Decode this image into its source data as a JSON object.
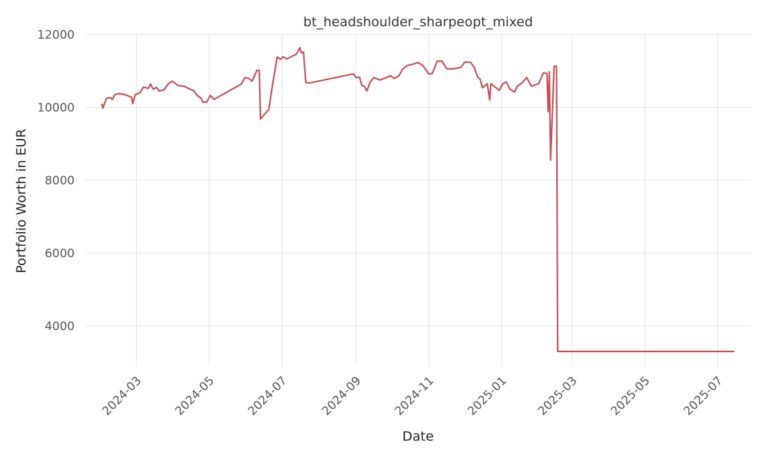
{
  "chart_data": {
    "type": "line",
    "title": "bt_headshoulder_sharpeopt_mixed",
    "xlabel": "Date",
    "ylabel": "Portfolio Worth in EUR",
    "x_tick_labels": [
      "2024-03",
      "2024-05",
      "2024-07",
      "2024-09",
      "2024-11",
      "2025-01",
      "2025-03",
      "2025-05",
      "2025-07"
    ],
    "y_ticks": [
      4000,
      6000,
      8000,
      10000,
      12000
    ],
    "xlim": [
      "2024-01-18",
      "2025-07-29"
    ],
    "ylim": [
      2900,
      12000
    ],
    "grid": true,
    "series_color": "#c44e52",
    "series": [
      {
        "name": "",
        "points": [
          [
            "2024-02-01",
            10100
          ],
          [
            "2024-02-02",
            9980
          ],
          [
            "2024-02-05",
            10250
          ],
          [
            "2024-02-08",
            10270
          ],
          [
            "2024-02-10",
            10220
          ],
          [
            "2024-02-12",
            10350
          ],
          [
            "2024-02-15",
            10380
          ],
          [
            "2024-02-19",
            10360
          ],
          [
            "2024-02-22",
            10330
          ],
          [
            "2024-02-26",
            10280
          ],
          [
            "2024-02-27",
            10100
          ],
          [
            "2024-02-29",
            10350
          ],
          [
            "2024-03-04",
            10400
          ],
          [
            "2024-03-07",
            10560
          ],
          [
            "2024-03-11",
            10520
          ],
          [
            "2024-03-13",
            10640
          ],
          [
            "2024-03-15",
            10500
          ],
          [
            "2024-03-18",
            10550
          ],
          [
            "2024-03-20",
            10450
          ],
          [
            "2024-03-24",
            10480
          ],
          [
            "2024-03-28",
            10650
          ],
          [
            "2024-03-31",
            10720
          ],
          [
            "2024-04-05",
            10600
          ],
          [
            "2024-04-10",
            10580
          ],
          [
            "2024-04-15",
            10500
          ],
          [
            "2024-04-18",
            10460
          ],
          [
            "2024-04-21",
            10330
          ],
          [
            "2024-04-24",
            10260
          ],
          [
            "2024-04-26",
            10140
          ],
          [
            "2024-04-29",
            10150
          ],
          [
            "2024-05-02",
            10330
          ],
          [
            "2024-05-05",
            10220
          ],
          [
            "2024-05-28",
            10640
          ],
          [
            "2024-05-31",
            10820
          ],
          [
            "2024-06-03",
            10800
          ],
          [
            "2024-06-06",
            10720
          ],
          [
            "2024-06-10",
            11020
          ],
          [
            "2024-06-12",
            11010
          ],
          [
            "2024-06-13",
            9680
          ],
          [
            "2024-06-20",
            9950
          ],
          [
            "2024-06-23",
            10600
          ],
          [
            "2024-06-27",
            11380
          ],
          [
            "2024-06-30",
            11320
          ],
          [
            "2024-07-02",
            11390
          ],
          [
            "2024-07-05",
            11330
          ],
          [
            "2024-07-13",
            11460
          ],
          [
            "2024-07-16",
            11640
          ],
          [
            "2024-07-17",
            11500
          ],
          [
            "2024-07-19",
            11520
          ],
          [
            "2024-07-21",
            10680
          ],
          [
            "2024-07-24",
            10670
          ],
          [
            "2024-08-30",
            10920
          ],
          [
            "2024-09-01",
            10820
          ],
          [
            "2024-09-04",
            10830
          ],
          [
            "2024-09-06",
            10600
          ],
          [
            "2024-09-08",
            10580
          ],
          [
            "2024-09-10",
            10450
          ],
          [
            "2024-09-13",
            10700
          ],
          [
            "2024-09-16",
            10820
          ],
          [
            "2024-09-21",
            10750
          ],
          [
            "2024-09-25",
            10800
          ],
          [
            "2024-09-30",
            10870
          ],
          [
            "2024-10-03",
            10790
          ],
          [
            "2024-10-07",
            10870
          ],
          [
            "2024-10-10",
            11050
          ],
          [
            "2024-10-14",
            11150
          ],
          [
            "2024-10-18",
            11180
          ],
          [
            "2024-10-23",
            11230
          ],
          [
            "2024-10-27",
            11150
          ],
          [
            "2024-11-01",
            10920
          ],
          [
            "2024-11-04",
            10930
          ],
          [
            "2024-11-08",
            11270
          ],
          [
            "2024-11-12",
            11270
          ],
          [
            "2024-11-16",
            11060
          ],
          [
            "2024-11-22",
            11060
          ],
          [
            "2024-11-28",
            11100
          ],
          [
            "2024-12-01",
            11240
          ],
          [
            "2024-12-06",
            11240
          ],
          [
            "2024-12-09",
            11100
          ],
          [
            "2024-12-12",
            10830
          ],
          [
            "2024-12-14",
            10780
          ],
          [
            "2024-12-16",
            10540
          ],
          [
            "2024-12-20",
            10650
          ],
          [
            "2024-12-22",
            10200
          ],
          [
            "2024-12-23",
            10650
          ],
          [
            "2024-12-30",
            10470
          ],
          [
            "2025-01-02",
            10650
          ],
          [
            "2025-01-05",
            10700
          ],
          [
            "2025-01-08",
            10500
          ],
          [
            "2025-01-12",
            10420
          ],
          [
            "2025-01-14",
            10580
          ],
          [
            "2025-01-18",
            10670
          ],
          [
            "2025-01-22",
            10820
          ],
          [
            "2025-01-26",
            10580
          ],
          [
            "2025-02-01",
            10650
          ],
          [
            "2025-02-05",
            10950
          ],
          [
            "2025-02-08",
            10930
          ],
          [
            "2025-02-09",
            9880
          ],
          [
            "2025-02-10",
            10980
          ],
          [
            "2025-02-11",
            8550
          ],
          [
            "2025-02-14",
            11130
          ],
          [
            "2025-02-16",
            11130
          ],
          [
            "2025-02-17",
            3300
          ],
          [
            "2025-07-15",
            3300
          ]
        ]
      }
    ]
  }
}
